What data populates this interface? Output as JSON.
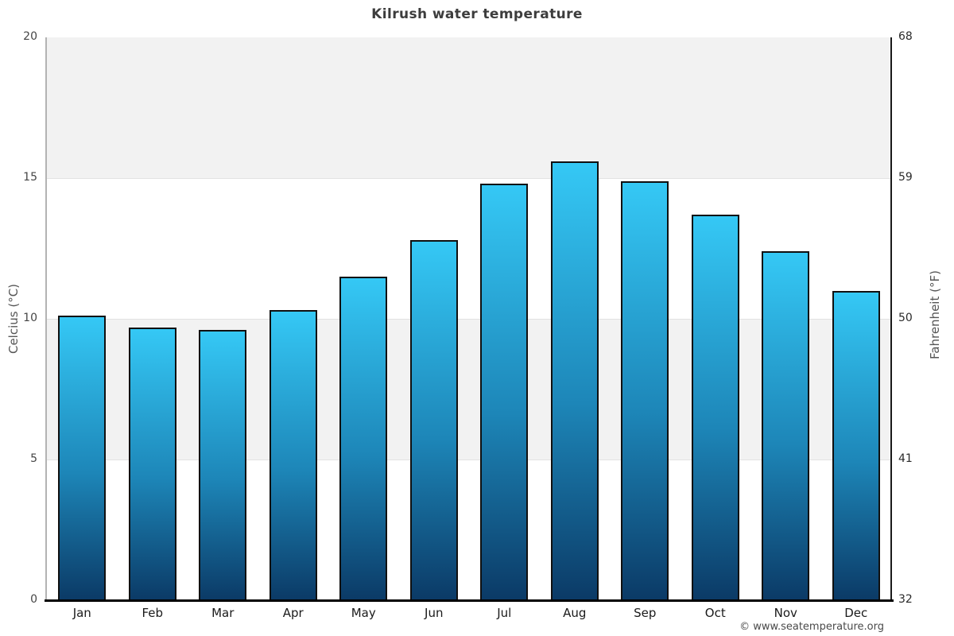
{
  "title": "Kilrush water temperature",
  "copyright": "© www.seatemperature.org",
  "chart_data": {
    "type": "bar",
    "title": "Kilrush water temperature",
    "categories": [
      "Jan",
      "Feb",
      "Mar",
      "Apr",
      "May",
      "Jun",
      "Jul",
      "Aug",
      "Sep",
      "Oct",
      "Nov",
      "Dec"
    ],
    "values": [
      10.1,
      9.7,
      9.6,
      10.3,
      11.5,
      12.8,
      14.8,
      15.6,
      14.9,
      13.7,
      12.4,
      11.0
    ],
    "unit": "°C",
    "xlabel": "",
    "ylabel_left": "Celcius (°C)",
    "ylabel_right": "Fahrenheit (°F)",
    "yticks_left": [
      0,
      5,
      10,
      15,
      20
    ],
    "yticks_right": [
      32,
      41,
      50,
      59,
      68
    ],
    "ylim": [
      0,
      20
    ],
    "grid_bands": [
      [
        5,
        10
      ],
      [
        15,
        20
      ]
    ],
    "legend": false,
    "colors": {
      "bar_top": "#35c8f5",
      "bar_mid": "#1d86b8",
      "bar_bottom": "#0b3a66",
      "bar_border": "#101010",
      "band": "#f2f2f2",
      "gridline": "#e2e2e2",
      "title_text": "#3d3d3d",
      "axis_text": "#454545"
    }
  }
}
